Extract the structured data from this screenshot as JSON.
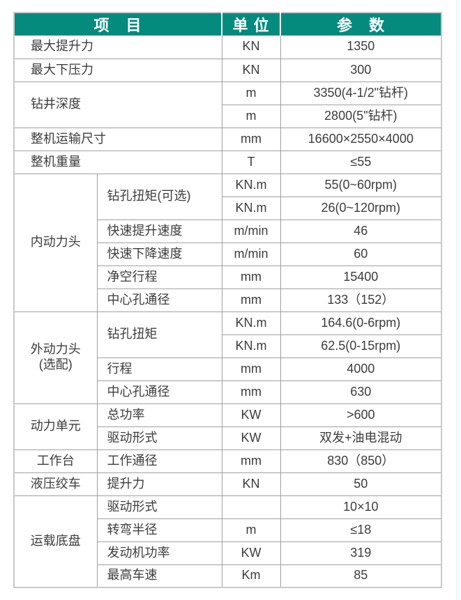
{
  "colors": {
    "header_bg": "#058a7e",
    "header_text": "#ffffff",
    "body_text": "#3c3c3c",
    "grid_border": "#a0a0a0",
    "outer_border": "#c9c9c9"
  },
  "table": {
    "headers": {
      "item": "项　目",
      "unit": "单 位",
      "param": "参　数"
    },
    "rows": [
      {
        "item": "最大提升力",
        "unit": "KN",
        "param": "1350"
      },
      {
        "item": "最大下压力",
        "unit": "KN",
        "param": "300"
      },
      {
        "item": "钻井深度",
        "unit": "m",
        "param": "3350(4-1/2\"钻杆)"
      },
      {
        "unit": "m",
        "param": "2800(5\"钻杆)"
      },
      {
        "item": "整机运输尺寸",
        "unit": "mm",
        "param": "16600×2550×4000"
      },
      {
        "item": "整机重量",
        "unit": "T",
        "param": "≤55"
      },
      {
        "group": "内动力头",
        "sub": "钻孔扭矩(可选)",
        "unit": "KN.m",
        "param": "55(0~60rpm)"
      },
      {
        "unit": "KN.m",
        "param": "26(0~120rpm)"
      },
      {
        "sub": "快速提升速度",
        "unit": "m/min",
        "param": "46"
      },
      {
        "sub": "快速下降速度",
        "unit": "m/min",
        "param": "60"
      },
      {
        "sub": "净空行程",
        "unit": "mm",
        "param": "15400"
      },
      {
        "sub": "中心孔通径",
        "unit": "mm",
        "param": "133（152）"
      },
      {
        "group": "外动力头\n(选配)",
        "sub": "钻孔扭矩",
        "unit": "KN.m",
        "param": "164.6(0-6rpm)"
      },
      {
        "unit": "KN.m",
        "param": "62.5(0-15rpm)"
      },
      {
        "sub": "行程",
        "unit": "mm",
        "param": "4000"
      },
      {
        "sub": "中心孔通径",
        "unit": "mm",
        "param": "630"
      },
      {
        "group": "动力单元",
        "sub": "总功率",
        "unit": "KW",
        "param": ">600"
      },
      {
        "sub": "驱动形式",
        "unit": "KW",
        "param": "双发+油电混动"
      },
      {
        "group": "工作台",
        "sub": "工作通径",
        "unit": "mm",
        "param": "830（850）"
      },
      {
        "group": "液压绞车",
        "sub": "提升力",
        "unit": "KN",
        "param": "50"
      },
      {
        "group": "运载底盘",
        "sub": "驱动形式",
        "unit": "",
        "param": "10×10"
      },
      {
        "sub": "转弯半径",
        "unit": "m",
        "param": "≤18"
      },
      {
        "sub": "发动机功率",
        "unit": "KW",
        "param": "319"
      },
      {
        "sub": "最高车速",
        "unit": "Km",
        "param": "85"
      }
    ]
  }
}
